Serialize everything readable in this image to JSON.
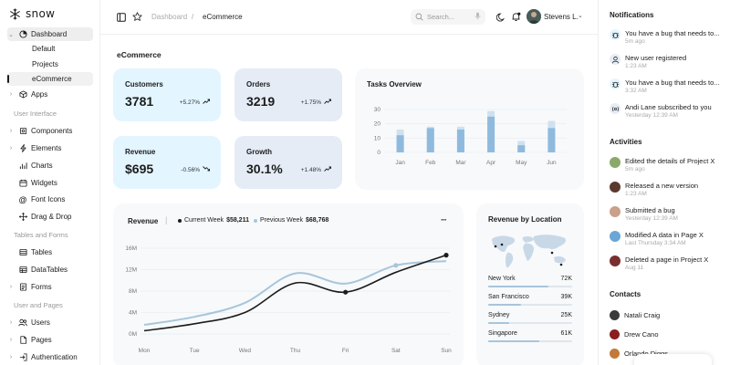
{
  "app": {
    "logo_text": "snow"
  },
  "sidebar": {
    "items": [
      {
        "label": "Dashboard"
      },
      {
        "label": "Default"
      },
      {
        "label": "Projects"
      },
      {
        "label": "eCommerce"
      },
      {
        "label": "Apps"
      },
      {
        "label": "Components"
      },
      {
        "label": "Elements"
      },
      {
        "label": "Charts"
      },
      {
        "label": "Widgets"
      },
      {
        "label": "Font Icons"
      },
      {
        "label": "Drag & Drop"
      },
      {
        "label": "Tables"
      },
      {
        "label": "DataTables"
      },
      {
        "label": "Forms"
      },
      {
        "label": "Users"
      },
      {
        "label": "Pages"
      },
      {
        "label": "Authentication"
      }
    ],
    "sections": [
      "User Interface",
      "Tables and Forms",
      "User and Pages"
    ]
  },
  "header": {
    "breadcrumb_parent": "Dashboard",
    "breadcrumb_sep": "/",
    "breadcrumb_current": "eCommerce",
    "search_placeholder": "Search...",
    "user_name": "Stevens L."
  },
  "main": {
    "title": "eCommerce",
    "stats": [
      {
        "label": "Customers",
        "value": "3781",
        "change": "+5.27%",
        "trend": "up",
        "color": "#e3f5ff"
      },
      {
        "label": "Orders",
        "value": "3219",
        "change": "+1.75%",
        "trend": "up",
        "color": "#e5ecf6"
      },
      {
        "label": "Revenue",
        "value": "$695",
        "change": "-0.56%",
        "trend": "down",
        "color": "#e3f5ff"
      },
      {
        "label": "Growth",
        "value": "30.1%",
        "change": "+1.48%",
        "trend": "up",
        "color": "#e5ecf6"
      }
    ],
    "tasks_overview_title": "Tasks Overview",
    "revenue_title": "Revenue",
    "revenue_divider": "|",
    "current_week_label": "Current Week",
    "current_week_value": "$58,211",
    "previous_week_label": "Previous Week",
    "previous_week_value": "$68,768",
    "more_label": "···",
    "location_title": "Revenue by Location",
    "locations": [
      {
        "name": "New York",
        "value": "72K",
        "fraction": 0.72
      },
      {
        "name": "San Francisco",
        "value": "39K",
        "fraction": 0.39
      },
      {
        "name": "Sydney",
        "value": "25K",
        "fraction": 0.25
      },
      {
        "name": "Singapore",
        "value": "61K",
        "fraction": 0.61
      }
    ]
  },
  "chart_data": [
    {
      "type": "bar",
      "categories": [
        "Jan",
        "Feb",
        "Mar",
        "Apr",
        "May",
        "Jun"
      ],
      "series": [
        {
          "values": [
            12,
            17,
            16,
            25,
            5,
            17
          ]
        },
        {
          "values": [
            16,
            18,
            18,
            29,
            8,
            22
          ]
        }
      ],
      "ylim": [
        0,
        30
      ],
      "yticks": [
        0,
        10,
        20,
        30
      ],
      "colors": [
        "#8fbade",
        "#cfe1ef"
      ]
    },
    {
      "type": "line",
      "x": [
        "Mon",
        "Tue",
        "Wed",
        "Thu",
        "Fri",
        "Sat",
        "Sun"
      ],
      "series": [
        {
          "name": "Current Week",
          "values": [
            0.6,
            1.9,
            4.0,
            9.5,
            7.8,
            11.5,
            14.7
          ],
          "color": "#1c1c1c"
        },
        {
          "name": "Previous Week",
          "values": [
            1.7,
            3.2,
            5.8,
            11.3,
            9.4,
            12.8,
            13.6
          ],
          "color": "#a8c5da"
        }
      ],
      "ylim": [
        0,
        16
      ],
      "yticks": [
        "0M",
        "4M",
        "8M",
        "12M",
        "16M"
      ],
      "grid": true
    }
  ],
  "notifications": [
    {
      "text": "You have a bug that needs to...",
      "time": "5m ago",
      "icon": "bug-icon"
    },
    {
      "text": "New user registered",
      "time": "1:23 AM",
      "icon": "user-icon"
    },
    {
      "text": "You have a bug that needs to...",
      "time": "3:32 AM",
      "icon": "bug-icon"
    },
    {
      "text": "Andi Lane subscribed to you",
      "time": "Yesterday 12:39 AM",
      "icon": "broadcast-icon"
    }
  ],
  "notifications_title": "Notifications",
  "activities_title": "Activities",
  "activities": [
    {
      "text": "Edited the details of Project X",
      "time": "5m ago",
      "color": "#8aa96a"
    },
    {
      "text": "Released a new version",
      "time": "1:23 AM",
      "color": "#5a3a2e"
    },
    {
      "text": "Submitted a bug",
      "time": "Yesterday 12:39 AM",
      "color": "#c9a08a"
    },
    {
      "text": "Modified A data in Page X",
      "time": "Last Thursday 3:34 AM",
      "color": "#6aa6d8"
    },
    {
      "text": "Deleted a page in Project X",
      "time": "Aug 11",
      "color": "#7a2e2e"
    }
  ],
  "contacts_title": "Contacts",
  "contacts": [
    {
      "name": "Natali Craig",
      "color": "#3a3a3a"
    },
    {
      "name": "Drew Cano",
      "color": "#8b1e1e"
    },
    {
      "name": "Orlando Diggs",
      "color": "#c27a3a"
    }
  ]
}
